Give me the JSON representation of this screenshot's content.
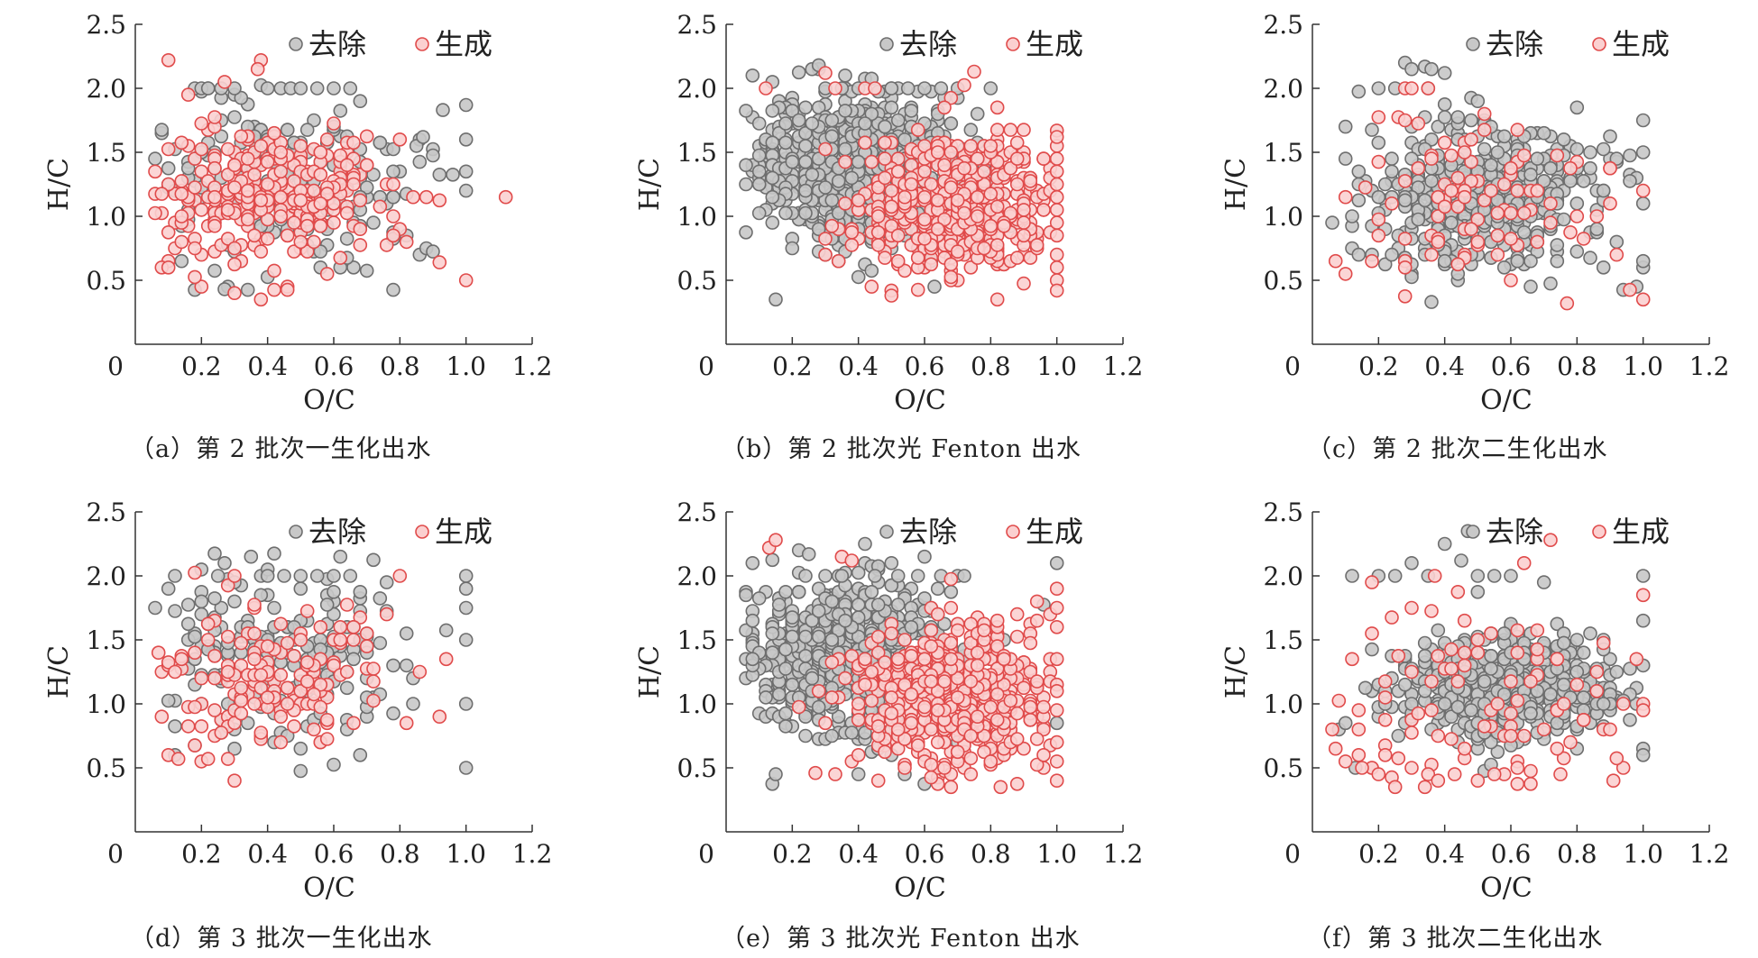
{
  "colors": {
    "removed_fill": "#c8c8c8",
    "removed_stroke": "#6e6e6e",
    "formed_fill": "#fbd0d0",
    "formed_stroke": "#e04b4b",
    "axis": "#333333"
  },
  "chart_data": [
    {
      "type": "scatter",
      "caption": "（a）第 2 批次一生化出水",
      "xlabel": "O/C",
      "ylabel": "H/C",
      "xlim": [
        0,
        1.2
      ],
      "ylim": [
        0,
        2.5
      ],
      "xticks": [
        "0",
        "0.2",
        "0.4",
        "0.6",
        "0.8",
        "1.0",
        "1.2"
      ],
      "yticks": [
        "0.5",
        "1.0",
        "1.5",
        "2.0",
        "2.5"
      ],
      "legend": [
        "去除",
        "生成"
      ],
      "legend_position": "top-right",
      "series": [
        {
          "name": "去除",
          "count": 200,
          "cx": 0.44,
          "cy": 1.28,
          "sx": 0.22,
          "sy": 0.33,
          "x": [
            0.18,
            0.2,
            0.22,
            0.26,
            0.3,
            0.4,
            0.44,
            0.47,
            0.5,
            0.55,
            0.6,
            0.65,
            0.85,
            0.87,
            0.93,
            1.0,
            1.0,
            1.0,
            1.0,
            0.28,
            0.27
          ],
          "y": [
            2.0,
            2.0,
            2.0,
            2.0,
            2.0,
            2.0,
            2.0,
            2.0,
            2.0,
            2.0,
            2.0,
            2.0,
            1.55,
            1.62,
            1.83,
            1.87,
            1.6,
            1.35,
            1.2,
            0.45,
            0.43
          ]
        },
        {
          "name": "生成",
          "count": 300,
          "cx": 0.4,
          "cy": 1.15,
          "sx": 0.18,
          "sy": 0.26,
          "x": [
            0.1,
            0.38,
            0.37,
            0.27,
            1.12,
            1.0,
            0.92,
            0.8
          ],
          "y": [
            2.22,
            2.22,
            2.15,
            2.05,
            1.15,
            0.5,
            0.64,
            1.6
          ]
        }
      ]
    },
    {
      "type": "scatter",
      "caption": "（b）第 2 批次光 Fenton 出水",
      "xlabel": "O/C",
      "ylabel": "H/C",
      "xlim": [
        0,
        1.2
      ],
      "ylim": [
        0,
        2.5
      ],
      "xticks": [
        "0",
        "0.2",
        "0.4",
        "0.6",
        "0.8",
        "1.0",
        "1.2"
      ],
      "yticks": [
        "0.5",
        "1.0",
        "1.5",
        "2.0",
        "2.5"
      ],
      "legend": [
        "去除",
        "生成"
      ],
      "legend_position": "top-right",
      "series": [
        {
          "name": "去除",
          "count": 700,
          "cx": 0.4,
          "cy": 1.38,
          "sx": 0.17,
          "sy": 0.3,
          "x": [
            0.26,
            0.28,
            0.3,
            0.35,
            0.4,
            0.5,
            0.55,
            0.6,
            0.65,
            0.7,
            0.8,
            0.15,
            0.63
          ],
          "y": [
            2.15,
            2.18,
            2.0,
            2.0,
            2.0,
            2.0,
            2.0,
            2.0,
            2.0,
            2.0,
            2.0,
            0.35,
            0.45
          ]
        },
        {
          "name": "生成",
          "count": 500,
          "cx": 0.7,
          "cy": 1.1,
          "sx": 0.14,
          "sy": 0.28,
          "x": [
            1.0,
            1.0,
            1.0,
            1.0,
            1.0,
            1.0,
            1.0,
            1.0,
            1.0,
            1.0,
            1.0,
            1.0,
            1.0,
            1.0,
            0.12,
            0.3,
            0.33,
            0.42,
            0.45,
            0.75,
            0.82,
            0.5,
            0.5
          ],
          "y": [
            1.67,
            1.55,
            1.45,
            1.35,
            1.25,
            1.15,
            1.05,
            0.95,
            0.85,
            0.7,
            0.6,
            0.5,
            0.42,
            1.62,
            2.0,
            2.12,
            2.0,
            2.0,
            2.0,
            2.13,
            0.35,
            0.42,
            0.38
          ]
        }
      ]
    },
    {
      "type": "scatter",
      "caption": "（c）第 2 批次二生化出水",
      "xlabel": "O/C",
      "ylabel": "H/C",
      "xlim": [
        0,
        1.2
      ],
      "ylim": [
        0,
        2.5
      ],
      "xticks": [
        "0",
        "0.2",
        "0.4",
        "0.6",
        "0.8",
        "1.0",
        "1.2"
      ],
      "yticks": [
        "0.5",
        "1.0",
        "1.5",
        "2.0",
        "2.5"
      ],
      "legend": [
        "去除",
        "生成"
      ],
      "legend_position": "top-right",
      "series": [
        {
          "name": "去除",
          "count": 420,
          "cx": 0.52,
          "cy": 1.15,
          "sx": 0.2,
          "sy": 0.3,
          "x": [
            0.2,
            0.25,
            0.3,
            0.35,
            0.4,
            0.34,
            0.36,
            1.0,
            1.0,
            1.0,
            1.0,
            1.0,
            0.36
          ],
          "y": [
            2.0,
            2.0,
            2.15,
            2.0,
            2.12,
            2.17,
            2.15,
            1.75,
            1.5,
            1.1,
            0.6,
            0.65,
            0.33
          ]
        },
        {
          "name": "生成",
          "count": 90,
          "cx": 0.5,
          "cy": 1.1,
          "sx": 0.22,
          "sy": 0.4,
          "x": [
            0.07,
            0.28,
            0.3,
            1.0,
            1.0,
            0.77,
            0.35,
            0.8
          ],
          "y": [
            0.65,
            2.0,
            2.0,
            1.2,
            0.35,
            0.32,
            2.0,
            1.0
          ]
        }
      ]
    },
    {
      "type": "scatter",
      "caption": "（d）第 3 批次一生化出水",
      "xlabel": "O/C",
      "ylabel": "H/C",
      "xlim": [
        0,
        1.2
      ],
      "ylim": [
        0,
        2.5
      ],
      "xticks": [
        "0",
        "0.2",
        "0.4",
        "0.6",
        "0.8",
        "1.0",
        "1.2"
      ],
      "yticks": [
        "0.5",
        "1.0",
        "1.5",
        "2.0",
        "2.5"
      ],
      "legend": [
        "去除",
        "生成"
      ],
      "legend_position": "top-right",
      "series": [
        {
          "name": "去除",
          "count": 200,
          "cx": 0.45,
          "cy": 1.4,
          "sx": 0.22,
          "sy": 0.35,
          "x": [
            0.12,
            0.25,
            0.27,
            0.35,
            0.4,
            0.45,
            0.5,
            0.55,
            0.6,
            0.65,
            1.0,
            1.0,
            1.0,
            1.0,
            1.0,
            1.0
          ],
          "y": [
            2.0,
            2.0,
            2.1,
            2.15,
            2.0,
            2.0,
            2.0,
            2.0,
            2.0,
            2.0,
            2.0,
            1.9,
            1.75,
            1.5,
            1.0,
            0.5
          ]
        },
        {
          "name": "生成",
          "count": 150,
          "cx": 0.4,
          "cy": 1.2,
          "sx": 0.2,
          "sy": 0.3,
          "x": [
            0.07,
            0.1,
            0.13,
            0.22,
            0.28,
            0.8,
            0.86,
            0.3
          ],
          "y": [
            1.4,
            0.6,
            0.57,
            0.57,
            0.57,
            2.0,
            1.25,
            2.0
          ]
        }
      ]
    },
    {
      "type": "scatter",
      "caption": "（e）第 3 批次光 Fenton 出水",
      "xlabel": "O/C",
      "ylabel": "H/C",
      "xlim": [
        0,
        1.2
      ],
      "ylim": [
        0,
        2.5
      ],
      "xticks": [
        "0",
        "0.2",
        "0.4",
        "0.6",
        "0.8",
        "1.0",
        "1.2"
      ],
      "yticks": [
        "0.5",
        "1.0",
        "1.5",
        "2.0",
        "2.5"
      ],
      "legend": [
        "去除",
        "生成"
      ],
      "legend_position": "top-right",
      "series": [
        {
          "name": "去除",
          "count": 650,
          "cx": 0.38,
          "cy": 1.38,
          "sx": 0.16,
          "sy": 0.3,
          "x": [
            0.25,
            0.3,
            0.35,
            0.42,
            0.45,
            0.52,
            0.58,
            0.65,
            0.7,
            0.72,
            1.0,
            1.0,
            0.4,
            0.15
          ],
          "y": [
            2.17,
            2.0,
            2.0,
            2.25,
            2.0,
            2.0,
            2.0,
            2.0,
            2.0,
            2.0,
            2.1,
            0.85,
            0.45,
            0.45
          ]
        },
        {
          "name": "生成",
          "count": 500,
          "cx": 0.68,
          "cy": 1.05,
          "sx": 0.14,
          "sy": 0.28,
          "x": [
            0.13,
            0.15,
            0.35,
            0.38,
            1.0,
            1.0,
            1.0,
            1.0,
            1.0,
            1.0,
            1.0,
            1.0,
            1.0,
            1.0,
            0.83,
            0.27,
            0.33
          ],
          "y": [
            2.22,
            2.28,
            2.15,
            2.12,
            1.9,
            1.75,
            1.6,
            1.35,
            1.15,
            1.1,
            0.95,
            0.7,
            0.55,
            0.4,
            0.35,
            0.46,
            0.45
          ]
        }
      ]
    },
    {
      "type": "scatter",
      "caption": "（f）第 3 批次二生化出水",
      "xlabel": "O/C",
      "ylabel": "H/C",
      "xlim": [
        0,
        1.2
      ],
      "ylim": [
        0,
        2.5
      ],
      "xticks": [
        "0",
        "0.2",
        "0.4",
        "0.6",
        "0.8",
        "1.0",
        "1.2"
      ],
      "yticks": [
        "0.5",
        "1.0",
        "1.5",
        "2.0",
        "2.5"
      ],
      "legend": [
        "去除",
        "生成"
      ],
      "legend_position": "top-right",
      "series": [
        {
          "name": "去除",
          "count": 520,
          "cx": 0.58,
          "cy": 1.12,
          "sx": 0.16,
          "sy": 0.22,
          "x": [
            0.12,
            0.2,
            0.25,
            0.3,
            0.35,
            0.4,
            0.45,
            0.47,
            0.5,
            0.55,
            0.6,
            1.0,
            1.0,
            1.0,
            1.0,
            1.0,
            0.08,
            0.1,
            0.13
          ],
          "y": [
            2.0,
            2.0,
            2.0,
            2.1,
            2.0,
            2.25,
            2.12,
            2.35,
            2.0,
            2.0,
            2.0,
            2.0,
            1.65,
            1.3,
            0.65,
            0.6,
            0.8,
            0.85,
            0.5
          ]
        },
        {
          "name": "生成",
          "count": 90,
          "cx": 0.5,
          "cy": 1.0,
          "sx": 0.25,
          "sy": 0.45,
          "x": [
            0.07,
            0.1,
            0.15,
            0.2,
            0.22,
            0.25,
            0.3,
            0.35,
            0.38,
            0.43,
            0.5,
            0.55,
            0.75,
            0.91,
            1.0,
            1.0,
            1.0,
            0.72,
            0.37
          ],
          "y": [
            0.65,
            0.55,
            0.5,
            0.45,
            0.6,
            0.35,
            0.5,
            0.45,
            0.4,
            0.45,
            0.4,
            0.45,
            0.45,
            0.4,
            1.85,
            1.0,
            0.95,
            2.28,
            2.0
          ]
        }
      ]
    }
  ]
}
